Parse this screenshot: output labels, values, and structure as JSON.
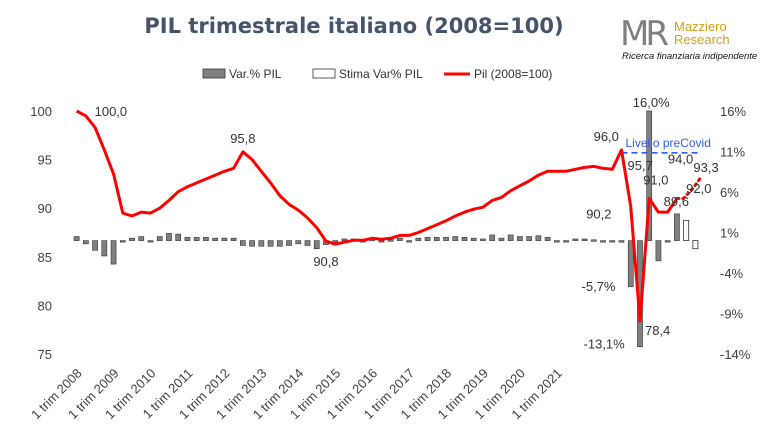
{
  "title": "PIL trimestrale italiano (2008=100)",
  "logo": {
    "initials": "MR",
    "line1": "Mazziero",
    "line2": "Research",
    "tagline": "Ricerca finanziaria indipendente"
  },
  "colors": {
    "line": "#ff0000",
    "bar": "#808080",
    "estimate_bar": "#ffffff",
    "precovid": "#2f5cff",
    "axis_text": "#404040"
  },
  "chart_data": {
    "type": "bar+line",
    "legend": {
      "position": "top",
      "items": [
        "Var.% PIL",
        "Stima Var% PIL",
        "Pil (2008=100)"
      ]
    },
    "x_tick_labels": [
      "1 trim 2008",
      "1 trim 2009",
      "1 trim 2010",
      "1 trim 2011",
      "1 trim 2012",
      "1 trim 2013",
      "1 trim 2014",
      "1 trim 2015",
      "1 trim 2016",
      "1 trim 2017",
      "1 trim 2018",
      "1 trim 2019",
      "1 trim 2020",
      "1 trim 2021"
    ],
    "y_left": {
      "range": [
        75,
        100
      ],
      "ticks": [
        75,
        80,
        85,
        90,
        95,
        100
      ]
    },
    "y_right": {
      "range": [
        -14,
        16
      ],
      "ticks": [
        "-14%",
        "-9%",
        "-4%",
        "1%",
        "6%",
        "11%",
        "16%"
      ]
    },
    "pil_index": {
      "name": "Pil (2008=100)",
      "values": [
        100.0,
        99.5,
        98.3,
        96.0,
        93.5,
        89.5,
        89.2,
        89.6,
        89.5,
        90.0,
        90.8,
        91.7,
        92.2,
        92.6,
        93.0,
        93.4,
        93.8,
        94.1,
        95.8,
        95.0,
        93.8,
        92.6,
        91.3,
        90.4,
        89.8,
        89.0,
        88.0,
        86.6,
        86.3,
        86.5,
        86.7,
        86.7,
        86.9,
        86.8,
        86.9,
        87.2,
        87.2,
        87.5,
        87.9,
        88.3,
        88.7,
        89.2,
        89.6,
        89.9,
        90.1,
        90.8,
        91.1,
        91.8,
        92.3,
        92.8,
        93.4,
        93.8,
        93.8,
        93.8,
        94.0,
        94.2,
        94.3,
        94.1,
        94.0,
        96.0,
        90.2,
        78.4,
        91.0,
        89.6,
        89.6,
        91.0
      ],
      "estimate": [
        91.0,
        92.0,
        93.3
      ]
    },
    "var_pct": {
      "name": "Var.% PIL",
      "values": [
        0.5,
        -0.4,
        -1.2,
        -1.9,
        -2.9,
        0.0,
        0.3,
        0.5,
        0.0,
        0.5,
        0.9,
        0.8,
        0.4,
        0.4,
        0.4,
        0.3,
        0.3,
        0.3,
        -0.6,
        -0.7,
        -0.7,
        -0.7,
        -0.7,
        -0.6,
        -0.4,
        -0.6,
        -1.0,
        -0.5,
        0.0,
        0.2,
        0.2,
        0.0,
        0.2,
        -0.1,
        0.1,
        0.3,
        0.0,
        0.3,
        0.4,
        0.4,
        0.4,
        0.5,
        0.4,
        0.3,
        0.2,
        0.7,
        0.3,
        0.7,
        0.5,
        0.5,
        0.6,
        0.4,
        0.0,
        0.0,
        0.2,
        0.2,
        0.1,
        -0.2,
        -0.1,
        -0.2,
        -5.7,
        -13.1,
        16.0,
        -2.5,
        0.0,
        3.3
      ],
      "estimate": [
        2.5,
        -1.0
      ]
    },
    "annotations": {
      "idx_100": "100,0",
      "idx_958": "95,8",
      "idx_908": "90,8",
      "idx_960": "96,0",
      "idx_957": "95,7",
      "idx_902": "90,2",
      "idx_784": "78,4",
      "idx_910": "91,0",
      "idx_896": "89,6",
      "idx_940": "94,0",
      "idx_920": "92,0",
      "idx_933": "93,3",
      "var_m57": "-5,7%",
      "var_m131": "-13,1%",
      "var_160": "16,0%",
      "precovid": "Livello preCovid"
    },
    "precovid_level": 95.7
  }
}
